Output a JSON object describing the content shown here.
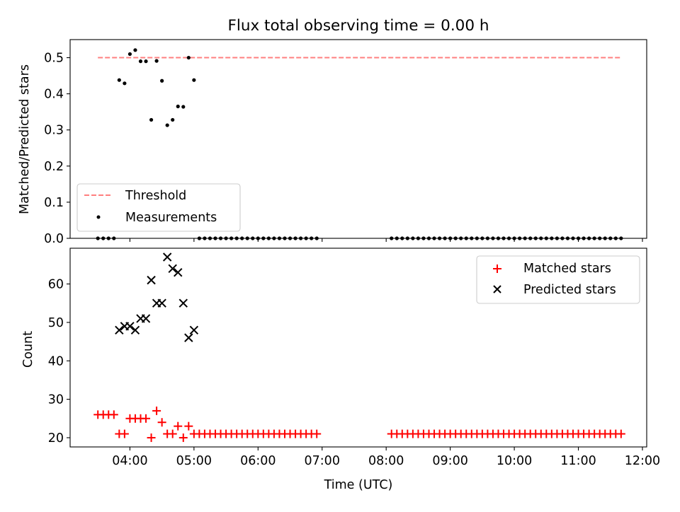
{
  "chart_data": [
    {
      "type": "scatter",
      "title": "Flux total observing time = 0.00 h",
      "xlabel": "",
      "ylabel": "Matched/Predicted stars",
      "xlim": [
        "03:04",
        "12:04"
      ],
      "ylim": [
        0,
        0.55
      ],
      "x_ticks": [
        "04:00",
        "05:00",
        "06:00",
        "07:00",
        "08:00",
        "09:00",
        "10:00",
        "11:00",
        "12:00"
      ],
      "y_ticks": [
        {
          "value": 0.0,
          "label": "0.0"
        },
        {
          "value": 0.1,
          "label": "0.1"
        },
        {
          "value": 0.2,
          "label": "0.2"
        },
        {
          "value": 0.3,
          "label": "0.3"
        },
        {
          "value": 0.4,
          "label": "0.4"
        },
        {
          "value": 0.5,
          "label": "0.5"
        }
      ],
      "threshold": {
        "name": "Threshold",
        "value": 0.5,
        "x_range": [
          "03:30",
          "11:40"
        ],
        "color": "#ff7f7f",
        "style": "dashed"
      },
      "series": [
        {
          "name": "Measurements",
          "marker": "dot",
          "color": "#000000",
          "points": [
            {
              "x": "03:30",
              "y": 0.0
            },
            {
              "x": "03:35",
              "y": 0.0
            },
            {
              "x": "03:40",
              "y": 0.0
            },
            {
              "x": "03:45",
              "y": 0.0
            },
            {
              "x": "03:50",
              "y": 0.438
            },
            {
              "x": "03:55",
              "y": 0.429
            },
            {
              "x": "04:00",
              "y": 0.51
            },
            {
              "x": "04:05",
              "y": 0.521
            },
            {
              "x": "04:10",
              "y": 0.49
            },
            {
              "x": "04:15",
              "y": 0.49
            },
            {
              "x": "04:20",
              "y": 0.328
            },
            {
              "x": "04:25",
              "y": 0.491
            },
            {
              "x": "04:30",
              "y": 0.436
            },
            {
              "x": "04:35",
              "y": 0.313
            },
            {
              "x": "04:40",
              "y": 0.328
            },
            {
              "x": "04:45",
              "y": 0.365
            },
            {
              "x": "04:50",
              "y": 0.364
            },
            {
              "x": "04:55",
              "y": 0.5
            },
            {
              "x": "05:00",
              "y": 0.438
            },
            {
              "x": "05:05",
              "y": 0.0
            },
            {
              "x": "05:10",
              "y": 0.0
            },
            {
              "x": "05:15",
              "y": 0.0
            },
            {
              "x": "05:20",
              "y": 0.0
            },
            {
              "x": "05:25",
              "y": 0.0
            },
            {
              "x": "05:30",
              "y": 0.0
            },
            {
              "x": "05:35",
              "y": 0.0
            },
            {
              "x": "05:40",
              "y": 0.0
            },
            {
              "x": "05:45",
              "y": 0.0
            },
            {
              "x": "05:50",
              "y": 0.0
            },
            {
              "x": "05:55",
              "y": 0.0
            },
            {
              "x": "06:00",
              "y": 0.0
            },
            {
              "x": "06:05",
              "y": 0.0
            },
            {
              "x": "06:10",
              "y": 0.0
            },
            {
              "x": "06:15",
              "y": 0.0
            },
            {
              "x": "06:20",
              "y": 0.0
            },
            {
              "x": "06:25",
              "y": 0.0
            },
            {
              "x": "06:30",
              "y": 0.0
            },
            {
              "x": "06:35",
              "y": 0.0
            },
            {
              "x": "06:40",
              "y": 0.0
            },
            {
              "x": "06:45",
              "y": 0.0
            },
            {
              "x": "06:50",
              "y": 0.0
            },
            {
              "x": "06:55",
              "y": 0.0
            },
            {
              "x": "08:05",
              "y": 0.0
            },
            {
              "x": "08:10",
              "y": 0.0
            },
            {
              "x": "08:15",
              "y": 0.0
            },
            {
              "x": "08:20",
              "y": 0.0
            },
            {
              "x": "08:25",
              "y": 0.0
            },
            {
              "x": "08:30",
              "y": 0.0
            },
            {
              "x": "08:35",
              "y": 0.0
            },
            {
              "x": "08:40",
              "y": 0.0
            },
            {
              "x": "08:45",
              "y": 0.0
            },
            {
              "x": "08:50",
              "y": 0.0
            },
            {
              "x": "08:55",
              "y": 0.0
            },
            {
              "x": "09:00",
              "y": 0.0
            },
            {
              "x": "09:05",
              "y": 0.0
            },
            {
              "x": "09:10",
              "y": 0.0
            },
            {
              "x": "09:15",
              "y": 0.0
            },
            {
              "x": "09:20",
              "y": 0.0
            },
            {
              "x": "09:25",
              "y": 0.0
            },
            {
              "x": "09:30",
              "y": 0.0
            },
            {
              "x": "09:35",
              "y": 0.0
            },
            {
              "x": "09:40",
              "y": 0.0
            },
            {
              "x": "09:45",
              "y": 0.0
            },
            {
              "x": "09:50",
              "y": 0.0
            },
            {
              "x": "09:55",
              "y": 0.0
            },
            {
              "x": "10:00",
              "y": 0.0
            },
            {
              "x": "10:05",
              "y": 0.0
            },
            {
              "x": "10:10",
              "y": 0.0
            },
            {
              "x": "10:15",
              "y": 0.0
            },
            {
              "x": "10:20",
              "y": 0.0
            },
            {
              "x": "10:25",
              "y": 0.0
            },
            {
              "x": "10:30",
              "y": 0.0
            },
            {
              "x": "10:35",
              "y": 0.0
            },
            {
              "x": "10:40",
              "y": 0.0
            },
            {
              "x": "10:45",
              "y": 0.0
            },
            {
              "x": "10:50",
              "y": 0.0
            },
            {
              "x": "10:55",
              "y": 0.0
            },
            {
              "x": "11:00",
              "y": 0.0
            },
            {
              "x": "11:05",
              "y": 0.0
            },
            {
              "x": "11:10",
              "y": 0.0
            },
            {
              "x": "11:15",
              "y": 0.0
            },
            {
              "x": "11:20",
              "y": 0.0
            },
            {
              "x": "11:25",
              "y": 0.0
            },
            {
              "x": "11:30",
              "y": 0.0
            },
            {
              "x": "11:35",
              "y": 0.0
            },
            {
              "x": "11:40",
              "y": 0.0
            }
          ]
        }
      ],
      "legend": {
        "position": "lower-left",
        "entries": [
          "Threshold",
          "Measurements"
        ]
      },
      "grid": false
    },
    {
      "type": "scatter",
      "title": "",
      "xlabel": "Time (UTC)",
      "ylabel": "Count",
      "xlim": [
        "03:04",
        "12:04"
      ],
      "ylim": [
        17.6,
        69.3
      ],
      "x_ticks": [
        "04:00",
        "05:00",
        "06:00",
        "07:00",
        "08:00",
        "09:00",
        "10:00",
        "11:00",
        "12:00"
      ],
      "y_ticks": [
        {
          "value": 20,
          "label": "20"
        },
        {
          "value": 30,
          "label": "30"
        },
        {
          "value": 40,
          "label": "40"
        },
        {
          "value": 50,
          "label": "50"
        },
        {
          "value": 60,
          "label": "60"
        }
      ],
      "series": [
        {
          "name": "Matched stars",
          "marker": "plus",
          "color": "#ff0000",
          "points": [
            {
              "x": "03:30",
              "y": 26
            },
            {
              "x": "03:35",
              "y": 26
            },
            {
              "x": "03:40",
              "y": 26
            },
            {
              "x": "03:45",
              "y": 26
            },
            {
              "x": "03:50",
              "y": 21
            },
            {
              "x": "03:55",
              "y": 21
            },
            {
              "x": "04:00",
              "y": 25
            },
            {
              "x": "04:05",
              "y": 25
            },
            {
              "x": "04:10",
              "y": 25
            },
            {
              "x": "04:15",
              "y": 25
            },
            {
              "x": "04:20",
              "y": 20
            },
            {
              "x": "04:25",
              "y": 27
            },
            {
              "x": "04:30",
              "y": 24
            },
            {
              "x": "04:35",
              "y": 21
            },
            {
              "x": "04:40",
              "y": 21
            },
            {
              "x": "04:45",
              "y": 23
            },
            {
              "x": "04:50",
              "y": 20
            },
            {
              "x": "04:55",
              "y": 23
            },
            {
              "x": "05:00",
              "y": 21
            },
            {
              "x": "05:05",
              "y": 21
            },
            {
              "x": "05:10",
              "y": 21
            },
            {
              "x": "05:15",
              "y": 21
            },
            {
              "x": "05:20",
              "y": 21
            },
            {
              "x": "05:25",
              "y": 21
            },
            {
              "x": "05:30",
              "y": 21
            },
            {
              "x": "05:35",
              "y": 21
            },
            {
              "x": "05:40",
              "y": 21
            },
            {
              "x": "05:45",
              "y": 21
            },
            {
              "x": "05:50",
              "y": 21
            },
            {
              "x": "05:55",
              "y": 21
            },
            {
              "x": "06:00",
              "y": 21
            },
            {
              "x": "06:05",
              "y": 21
            },
            {
              "x": "06:10",
              "y": 21
            },
            {
              "x": "06:15",
              "y": 21
            },
            {
              "x": "06:20",
              "y": 21
            },
            {
              "x": "06:25",
              "y": 21
            },
            {
              "x": "06:30",
              "y": 21
            },
            {
              "x": "06:35",
              "y": 21
            },
            {
              "x": "06:40",
              "y": 21
            },
            {
              "x": "06:45",
              "y": 21
            },
            {
              "x": "06:50",
              "y": 21
            },
            {
              "x": "06:55",
              "y": 21
            },
            {
              "x": "08:05",
              "y": 21
            },
            {
              "x": "08:10",
              "y": 21
            },
            {
              "x": "08:15",
              "y": 21
            },
            {
              "x": "08:20",
              "y": 21
            },
            {
              "x": "08:25",
              "y": 21
            },
            {
              "x": "08:30",
              "y": 21
            },
            {
              "x": "08:35",
              "y": 21
            },
            {
              "x": "08:40",
              "y": 21
            },
            {
              "x": "08:45",
              "y": 21
            },
            {
              "x": "08:50",
              "y": 21
            },
            {
              "x": "08:55",
              "y": 21
            },
            {
              "x": "09:00",
              "y": 21
            },
            {
              "x": "09:05",
              "y": 21
            },
            {
              "x": "09:10",
              "y": 21
            },
            {
              "x": "09:15",
              "y": 21
            },
            {
              "x": "09:20",
              "y": 21
            },
            {
              "x": "09:25",
              "y": 21
            },
            {
              "x": "09:30",
              "y": 21
            },
            {
              "x": "09:35",
              "y": 21
            },
            {
              "x": "09:40",
              "y": 21
            },
            {
              "x": "09:45",
              "y": 21
            },
            {
              "x": "09:50",
              "y": 21
            },
            {
              "x": "09:55",
              "y": 21
            },
            {
              "x": "10:00",
              "y": 21
            },
            {
              "x": "10:05",
              "y": 21
            },
            {
              "x": "10:10",
              "y": 21
            },
            {
              "x": "10:15",
              "y": 21
            },
            {
              "x": "10:20",
              "y": 21
            },
            {
              "x": "10:25",
              "y": 21
            },
            {
              "x": "10:30",
              "y": 21
            },
            {
              "x": "10:35",
              "y": 21
            },
            {
              "x": "10:40",
              "y": 21
            },
            {
              "x": "10:45",
              "y": 21
            },
            {
              "x": "10:50",
              "y": 21
            },
            {
              "x": "10:55",
              "y": 21
            },
            {
              "x": "11:00",
              "y": 21
            },
            {
              "x": "11:05",
              "y": 21
            },
            {
              "x": "11:10",
              "y": 21
            },
            {
              "x": "11:15",
              "y": 21
            },
            {
              "x": "11:20",
              "y": 21
            },
            {
              "x": "11:25",
              "y": 21
            },
            {
              "x": "11:30",
              "y": 21
            },
            {
              "x": "11:35",
              "y": 21
            },
            {
              "x": "11:40",
              "y": 21
            }
          ]
        },
        {
          "name": "Predicted stars",
          "marker": "x",
          "color": "#000000",
          "points": [
            {
              "x": "03:50",
              "y": 48
            },
            {
              "x": "03:55",
              "y": 49
            },
            {
              "x": "04:00",
              "y": 49
            },
            {
              "x": "04:05",
              "y": 48
            },
            {
              "x": "04:10",
              "y": 51
            },
            {
              "x": "04:15",
              "y": 51
            },
            {
              "x": "04:20",
              "y": 61
            },
            {
              "x": "04:25",
              "y": 55
            },
            {
              "x": "04:30",
              "y": 55
            },
            {
              "x": "04:35",
              "y": 67
            },
            {
              "x": "04:40",
              "y": 64
            },
            {
              "x": "04:45",
              "y": 63
            },
            {
              "x": "04:50",
              "y": 55
            },
            {
              "x": "04:55",
              "y": 46
            },
            {
              "x": "05:00",
              "y": 48
            }
          ]
        }
      ],
      "legend": {
        "position": "upper-right",
        "entries": [
          "Matched stars",
          "Predicted stars"
        ]
      },
      "grid": false
    }
  ]
}
